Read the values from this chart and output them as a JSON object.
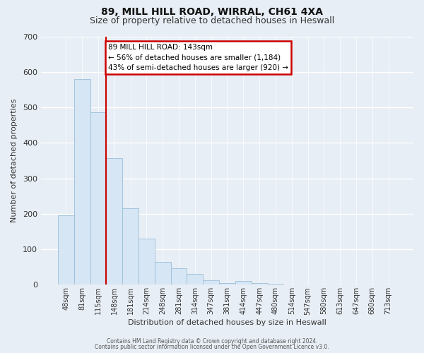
{
  "title": "89, MILL HILL ROAD, WIRRAL, CH61 4XA",
  "subtitle": "Size of property relative to detached houses in Heswall",
  "xlabel": "Distribution of detached houses by size in Heswall",
  "ylabel": "Number of detached properties",
  "bin_labels": [
    "48sqm",
    "81sqm",
    "115sqm",
    "148sqm",
    "181sqm",
    "214sqm",
    "248sqm",
    "281sqm",
    "314sqm",
    "347sqm",
    "381sqm",
    "414sqm",
    "447sqm",
    "480sqm",
    "514sqm",
    "547sqm",
    "580sqm",
    "613sqm",
    "647sqm",
    "680sqm",
    "713sqm"
  ],
  "bar_heights": [
    195,
    580,
    487,
    357,
    216,
    130,
    65,
    46,
    30,
    12,
    5,
    10,
    5,
    2,
    0,
    0,
    0,
    0,
    0,
    0,
    0
  ],
  "bar_color": "#d6e6f5",
  "bar_edge_color": "#9bbfd8",
  "vline_color": "#cc0000",
  "vline_position": 2.5,
  "annotation_text": "89 MILL HILL ROAD: 143sqm\n← 56% of detached houses are smaller (1,184)\n43% of semi-detached houses are larger (920) →",
  "annotation_box_edgecolor": "#cc0000",
  "annotation_box_facecolor": "#ffffff",
  "ylim": [
    0,
    700
  ],
  "yticks": [
    0,
    100,
    200,
    300,
    400,
    500,
    600,
    700
  ],
  "footer_line1": "Contains HM Land Registry data © Crown copyright and database right 2024.",
  "footer_line2": "Contains public sector information licensed under the Open Government Licence v3.0.",
  "background_color": "#e8eef5",
  "plot_bg_color": "#e8eef5",
  "grid_color": "#ffffff",
  "title_fontsize": 10,
  "subtitle_fontsize": 9
}
